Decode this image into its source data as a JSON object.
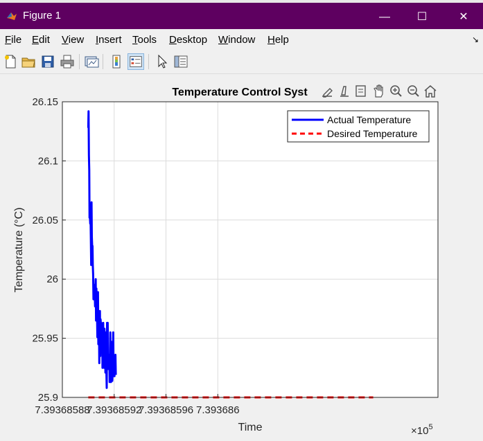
{
  "window": {
    "title": "Figure 1",
    "minimize": "—",
    "maximize": "☐",
    "close": "✕"
  },
  "menu": [
    {
      "label": "File",
      "u": "F",
      "rest": "ile"
    },
    {
      "label": "Edit",
      "u": "E",
      "rest": "dit"
    },
    {
      "label": "View",
      "u": "V",
      "rest": "iew"
    },
    {
      "label": "Insert",
      "u": "I",
      "rest": "nsert"
    },
    {
      "label": "Tools",
      "u": "T",
      "rest": "ools"
    },
    {
      "label": "Desktop",
      "u": "D",
      "rest": "esktop"
    },
    {
      "label": "Window",
      "u": "W",
      "rest": "indow"
    },
    {
      "label": "Help",
      "u": "H",
      "rest": "elp"
    }
  ],
  "toolbar_icons": [
    "new-figure-icon",
    "open-file-icon",
    "save-icon",
    "print-icon",
    "link-plot-icon",
    "insert-colorbar-icon",
    "insert-legend-icon",
    "pointer-icon",
    "property-inspector-icon"
  ],
  "axes_toolbar_icons": [
    "export-icon",
    "brush-icon",
    "data-tips-icon",
    "pan-icon",
    "zoom-in-icon",
    "zoom-out-icon",
    "home-icon"
  ],
  "colors": {
    "actual": "#0000ff",
    "desired": "#ff0000",
    "titlebar": "#5e0060"
  },
  "chart_data": {
    "type": "line",
    "title": "Temperature Control Syst",
    "xlabel": "Time",
    "ylabel": "Temperature (°C)",
    "x_exponent_label": "×10",
    "x_exponent_power": "5",
    "xlim": [
      7.39368588,
      7.39368617
    ],
    "ylim": [
      25.9,
      26.15
    ],
    "xticks": [
      7.39368588,
      7.39368592,
      7.39368596,
      7.393686
    ],
    "xtick_labels": [
      "7.39368588",
      "7.39368592",
      "7.39368596",
      "7.393686"
    ],
    "yticks": [
      25.9,
      25.95,
      26,
      26.05,
      26.1,
      26.15
    ],
    "ytick_labels": [
      "25.9",
      "25.95",
      "26",
      "26.05",
      "26.1",
      "26.15"
    ],
    "grid": true,
    "legend_position": "top-right",
    "series": [
      {
        "name": "Actual Temperature",
        "style": "solid",
        "x_start": 7.3936859,
        "x_step": 2.5e-10,
        "values": [
          26.128,
          26.142,
          26.105,
          26.092,
          26.052,
          26.054,
          26.047,
          26.051,
          26.035,
          26.012,
          26.065,
          26.036,
          26.028,
          26.028,
          26.012,
          26.004,
          25.983,
          25.992,
          25.983,
          25.995,
          25.988,
          25.977,
          25.993,
          26.0,
          25.965,
          25.992,
          25.972,
          25.972,
          25.951,
          25.955,
          25.989,
          25.945,
          25.961,
          25.963,
          25.929,
          25.959,
          25.973,
          25.935,
          25.966,
          25.962,
          25.963,
          25.943,
          25.945,
          25.955,
          25.925,
          25.946,
          25.963,
          25.945,
          25.927,
          25.925,
          25.958,
          25.929,
          25.944,
          25.921,
          25.955,
          25.953,
          25.922,
          25.908,
          25.963,
          25.945,
          25.963,
          25.935,
          25.924,
          25.926,
          25.934,
          25.936,
          25.913,
          25.918,
          25.955,
          25.922,
          25.913,
          25.937,
          25.947,
          25.945,
          25.914,
          25.918,
          25.935,
          25.955,
          25.926,
          25.923,
          25.918,
          25.918,
          25.931,
          25.931,
          25.936,
          25.919
        ]
      },
      {
        "name": "Desired Temperature",
        "style": "dashed",
        "x": [
          7.3936859,
          7.39368612
        ],
        "values": [
          25.9,
          25.9
        ]
      }
    ]
  }
}
